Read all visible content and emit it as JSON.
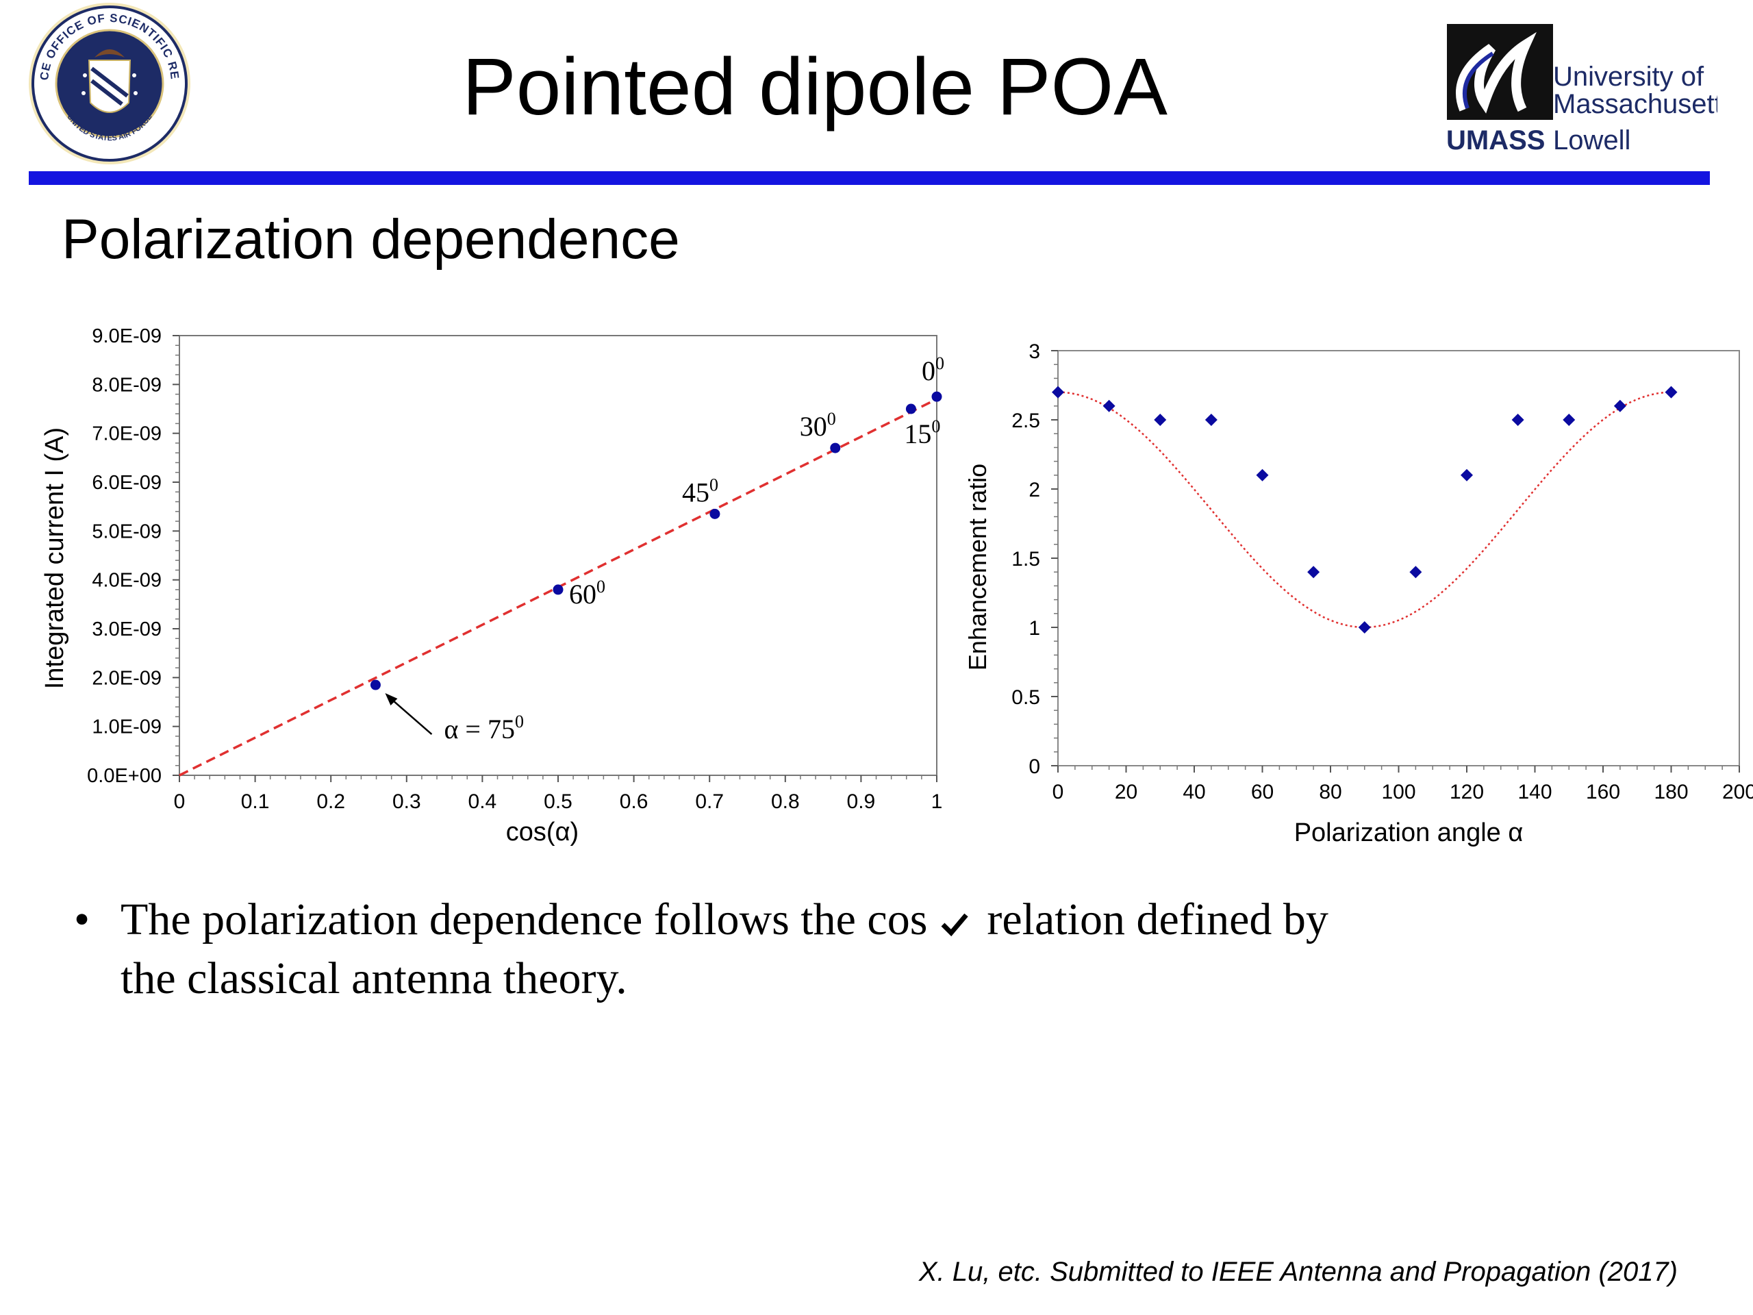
{
  "header": {
    "title": "Pointed dipole POA",
    "left_logo_text_top": "AIR FORCE OFFICE OF SCIENTIFIC RESEARCH",
    "left_logo_text_bottom": "UNITED STATES AIR FORCE",
    "right_logo": {
      "line1": "University of",
      "line2": "Massachusetts",
      "brand": "UMASS",
      "line3": "Lowell"
    },
    "rule_color": "#1414e0"
  },
  "section": {
    "title": "Polarization dependence"
  },
  "bullet": {
    "text_before": "The polarization dependence follows the cos",
    "text_after": " relation defined by",
    "line2": "the classical antenna theory."
  },
  "citation": "X. Lu, etc. Submitted to IEEE Antenna and Propagation (2017)",
  "chart_data": [
    {
      "type": "scatter",
      "xlabel": "cos(α)",
      "ylabel": "Integrated current I (A)",
      "xlim": [
        0,
        1
      ],
      "ylim": [
        0,
        9e-09
      ],
      "x_ticks": [
        "0",
        "0.1",
        "0.2",
        "0.3",
        "0.4",
        "0.5",
        "0.6",
        "0.7",
        "0.8",
        "0.9",
        "1"
      ],
      "y_ticks": [
        "0.0E+00",
        "1.0E-09",
        "2.0E-09",
        "3.0E-09",
        "4.0E-09",
        "5.0E-09",
        "6.0E-09",
        "7.0E-09",
        "8.0E-09",
        "9.0E-09"
      ],
      "marker_color": "#0a0aa0",
      "fit_color": "#e03030",
      "fit": {
        "x": [
          0,
          1
        ],
        "y": [
          0,
          7.7e-09
        ]
      },
      "points": [
        {
          "x": 0.259,
          "y": 1.85e-09,
          "label": "α = 75",
          "sup": "0"
        },
        {
          "x": 0.5,
          "y": 3.8e-09,
          "label": "60",
          "sup": "0"
        },
        {
          "x": 0.707,
          "y": 5.35e-09,
          "label": "45",
          "sup": "0"
        },
        {
          "x": 0.866,
          "y": 6.7e-09,
          "label": "30",
          "sup": "0"
        },
        {
          "x": 0.966,
          "y": 7.5e-09,
          "label": "15",
          "sup": "0"
        },
        {
          "x": 1.0,
          "y": 7.75e-09,
          "label": "0",
          "sup": "0"
        }
      ]
    },
    {
      "type": "scatter",
      "xlabel": "Polarization angle  α",
      "ylabel": "Enhancement ratio",
      "xlim": [
        0,
        200
      ],
      "ylim": [
        0,
        3
      ],
      "x_ticks": [
        "0",
        "20",
        "40",
        "60",
        "80",
        "100",
        "120",
        "140",
        "160",
        "180",
        "200"
      ],
      "y_ticks": [
        "0",
        "0.5",
        "1",
        "1.5",
        "2",
        "2.5",
        "3"
      ],
      "marker_color": "#0a0aa0",
      "fit_color": "#e03030",
      "x": [
        0,
        15,
        30,
        45,
        60,
        75,
        90,
        105,
        120,
        135,
        150,
        165,
        180
      ],
      "y": [
        2.7,
        2.6,
        2.5,
        2.5,
        2.1,
        1.4,
        1.0,
        1.4,
        2.1,
        2.5,
        2.5,
        2.6,
        2.7
      ]
    }
  ]
}
